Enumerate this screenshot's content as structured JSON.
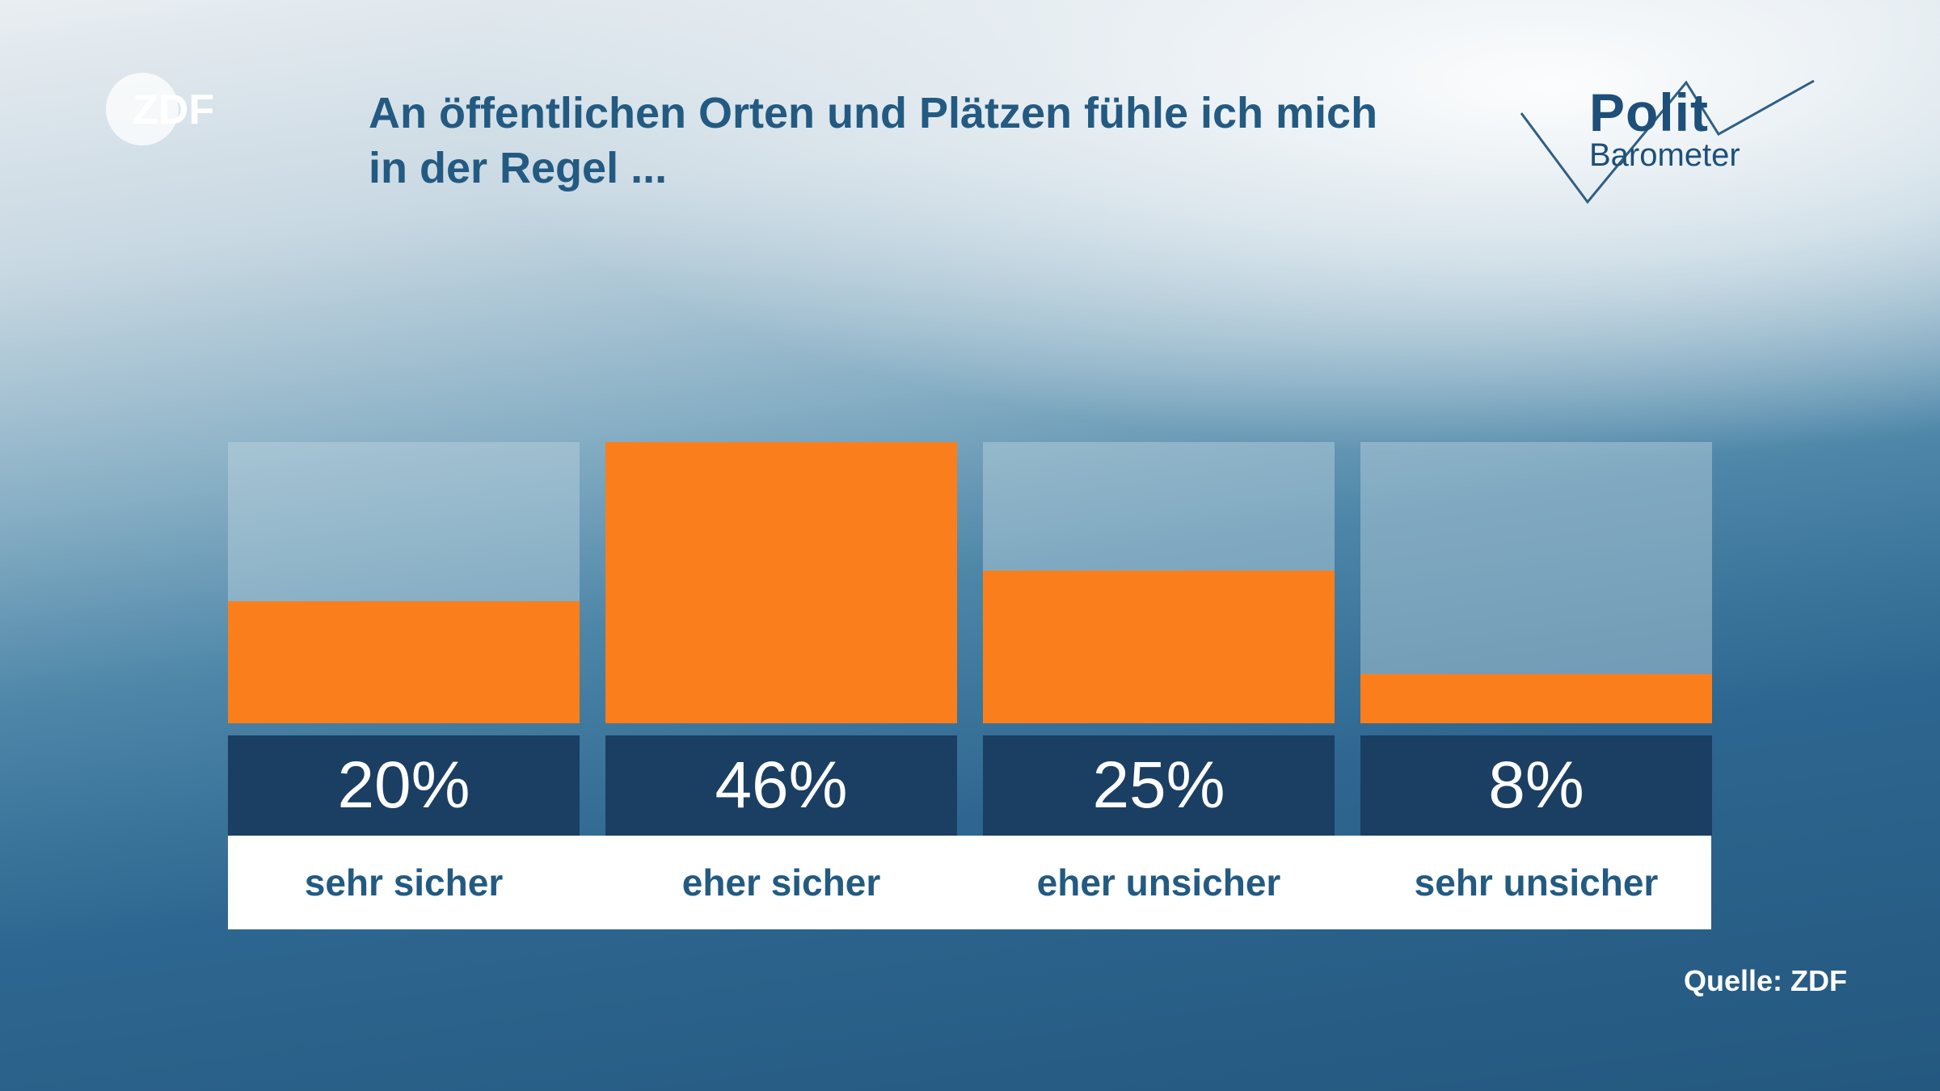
{
  "header": {
    "title_lines": [
      "An öffentlichen Orten und Plätzen fühle ich mich",
      "in der Regel ..."
    ],
    "logo_zdf": "ZDF",
    "logo_polit": "Polit",
    "logo_barometer": "Barometer"
  },
  "colors": {
    "bar": "#fa7f1c",
    "value_box": "#1b3e63",
    "title_text": "#235a82"
  },
  "chart_data": {
    "type": "bar",
    "title": "An öffentlichen Orten und Plätzen fühle ich mich in der Regel ...",
    "categories": [
      "sehr sicher",
      "eher sicher",
      "eher unsicher",
      "sehr unsicher"
    ],
    "values": [
      20,
      46,
      25,
      8
    ],
    "value_labels": [
      "20%",
      "46%",
      "25%",
      "8%"
    ],
    "unit": "%",
    "ylim": [
      0,
      46
    ],
    "xlabel": "",
    "ylabel": "",
    "grid": false,
    "legend": "none"
  },
  "footer": {
    "source": "Quelle: ZDF"
  }
}
